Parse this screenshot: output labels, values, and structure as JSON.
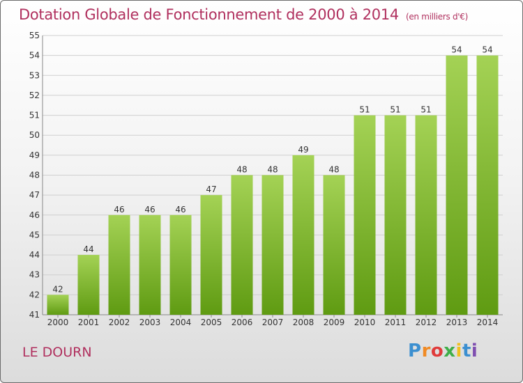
{
  "header": {
    "title": "Dotation Globale de Fonctionnement de 2000 à 2014",
    "unit": "(en milliers d'€)"
  },
  "footer": {
    "place": "LE DOURN",
    "logo_text": "Proxiti"
  },
  "colors": {
    "bar_top": "#a4d255",
    "bar_bottom": "#5f9b12",
    "title": "#b0305e",
    "grid": "#cfcfcf"
  },
  "chart_data": {
    "type": "bar",
    "title": "Dotation Globale de Fonctionnement de 2000 à 2014",
    "subtitle": "(en milliers d'€)",
    "xlabel": "",
    "ylabel": "",
    "categories": [
      "2000",
      "2001",
      "2002",
      "2003",
      "2004",
      "2005",
      "2006",
      "2007",
      "2008",
      "2009",
      "2010",
      "2011",
      "2012",
      "2013",
      "2014"
    ],
    "values": [
      42,
      44,
      46,
      46,
      46,
      47,
      48,
      48,
      49,
      48,
      51,
      51,
      51,
      54,
      54
    ],
    "ylim": [
      41,
      55
    ],
    "yticks": [
      41,
      42,
      43,
      44,
      45,
      46,
      47,
      48,
      49,
      50,
      51,
      52,
      53,
      54,
      55
    ],
    "grid": true,
    "legend": "none"
  }
}
